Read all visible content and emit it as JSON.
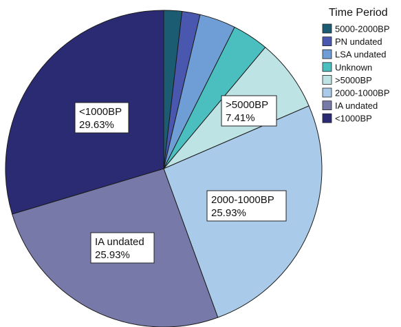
{
  "chart_data": {
    "type": "pie",
    "title": "",
    "legend": {
      "title": "Time Period",
      "position": "top-right"
    },
    "start_angle_deg": 0,
    "direction": "clockwise",
    "slices": [
      {
        "name": "5000-2000BP",
        "value": 1.85,
        "color": "#1b5c72",
        "label": "",
        "label_value": ""
      },
      {
        "name": "PN undated",
        "value": 1.85,
        "color": "#4a57ae",
        "label": "",
        "label_value": ""
      },
      {
        "name": "LSA undated",
        "value": 3.7,
        "color": "#6f9ed6",
        "label": "",
        "label_value": ""
      },
      {
        "name": "Unknown",
        "value": 3.7,
        "color": "#4bbfbf",
        "label": "",
        "label_value": ""
      },
      {
        "name": ">5000BP",
        "value": 7.41,
        "color": "#bde3e5",
        "label": ">5000BP",
        "label_value": "7.41%"
      },
      {
        "name": "2000-1000BP",
        "value": 25.93,
        "color": "#a9cbe9",
        "label": "2000-1000BP",
        "label_value": "25.93%"
      },
      {
        "name": "IA undated",
        "value": 25.93,
        "color": "#7779a8",
        "label": "IA undated",
        "label_value": "25.93%"
      },
      {
        "name": "<1000BP",
        "value": 29.63,
        "color": "#2a2b73",
        "label": "<1000BP",
        "label_value": "29.63%"
      }
    ]
  }
}
